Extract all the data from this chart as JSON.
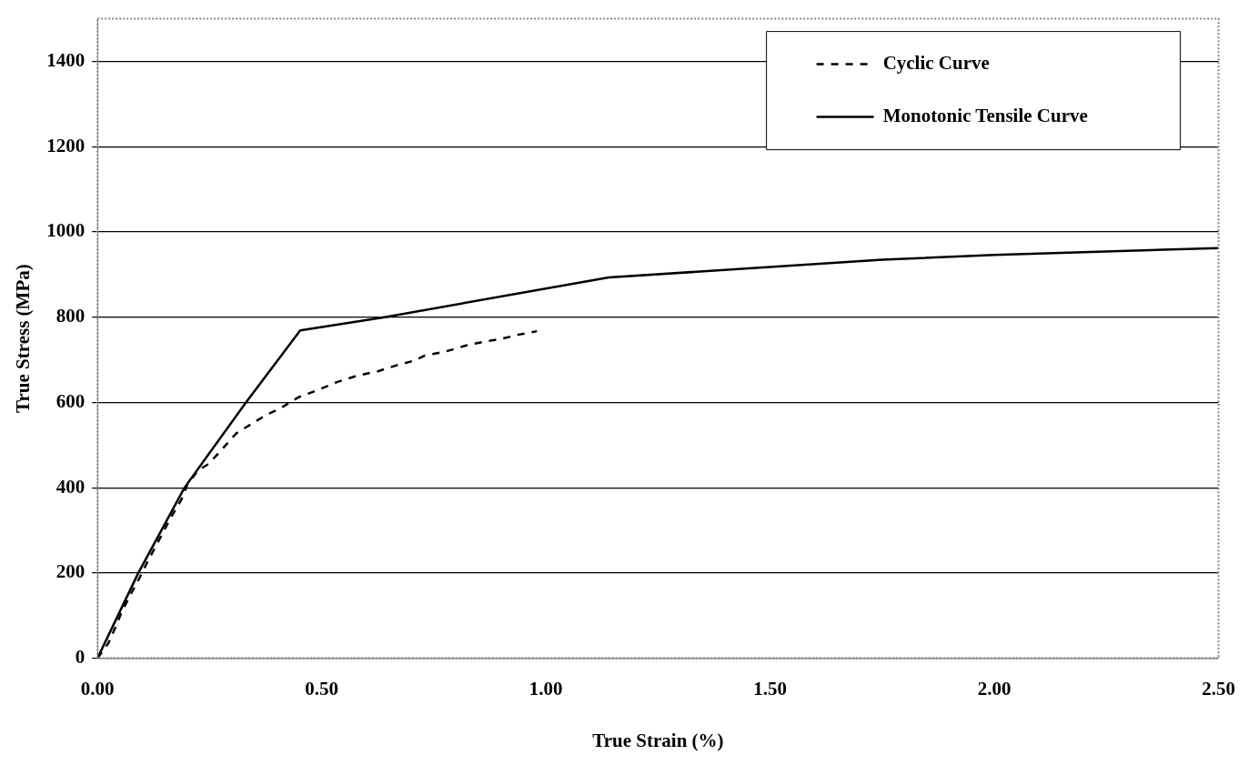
{
  "chart_data": {
    "type": "line",
    "xlabel": "True Strain (%)",
    "ylabel": "True Stress (MPa)",
    "xlim": [
      0,
      2.5
    ],
    "ylim": [
      0,
      1500
    ],
    "xticks": [
      {
        "value": 0,
        "label": "0.00"
      },
      {
        "value": 0.5,
        "label": "0.50"
      },
      {
        "value": 1,
        "label": "1.00"
      },
      {
        "value": 1.5,
        "label": "1.50"
      },
      {
        "value": 2,
        "label": "2.00"
      },
      {
        "value": 2.5,
        "label": "2.50"
      }
    ],
    "yticks": [
      0,
      200,
      400,
      600,
      800,
      1000,
      1200,
      1400
    ],
    "grid": "y",
    "legend": "top right",
    "marker": "none",
    "series": [
      {
        "name": "Cyclic Curve",
        "color": "#000000",
        "line_style": "dashed",
        "x": [
          0,
          0.024,
          0.041,
          0.055,
          0.074,
          0.092,
          0.111,
          0.13,
          0.149,
          0.167,
          0.188,
          0.201,
          0.225,
          0.248,
          0.276,
          0.309,
          0.347,
          0.375,
          0.406,
          0.448,
          0.486,
          0.535,
          0.577,
          0.625,
          0.667,
          0.706,
          0.73,
          0.775,
          0.82,
          0.869,
          0.897,
          0.939,
          0.98
        ],
        "values": [
          0,
          35,
          75,
          111,
          150,
          185,
          225,
          263,
          301,
          336,
          374,
          409,
          441,
          456,
          488,
          527,
          552,
          570,
          585,
          612,
          627,
          648,
          662,
          673,
          687,
          698,
          710,
          719,
          733,
          744,
          748,
          759,
          767
        ]
      },
      {
        "name": "Monotonic Tensile Curve",
        "color": "#000000",
        "line_style": "solid",
        "x": [
          0,
          0.091,
          0.194,
          0.331,
          0.452,
          0.64,
          1.14,
          1.75,
          2.0,
          2.5
        ],
        "values": [
          0,
          200,
          400,
          600,
          769,
          800,
          893,
          935,
          946,
          962
        ]
      }
    ]
  }
}
